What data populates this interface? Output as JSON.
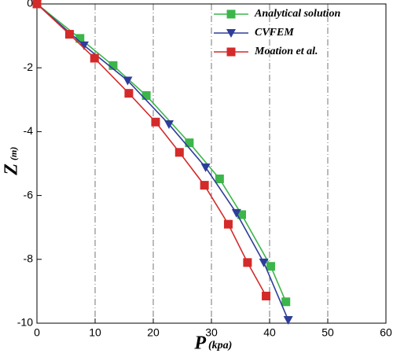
{
  "chart_data": {
    "type": "line",
    "x_label": "P",
    "x_unit": "(kpa)",
    "y_label": "Z",
    "y_unit": "(m)",
    "xlim": [
      0,
      60
    ],
    "ylim": [
      -10,
      0
    ],
    "xticks": [
      0,
      10,
      20,
      30,
      40,
      50,
      60
    ],
    "yticks": [
      0,
      -2,
      -4,
      -6,
      -8,
      -10
    ],
    "grid": true,
    "legend": "upper right",
    "series": [
      {
        "name": "Analytical solution",
        "color": "#3cb54a",
        "marker": "square",
        "x": [
          0,
          7.4,
          13.1,
          18.8,
          26.2,
          31.4,
          35.2,
          40.2,
          42.8
        ],
        "values": [
          0,
          -1.08,
          -1.93,
          -2.87,
          -4.35,
          -5.48,
          -6.6,
          -8.22,
          -9.33
        ]
      },
      {
        "name": "CVFEM",
        "color": "#2e3d9a",
        "marker": "triangle-down",
        "x": [
          0,
          8.1,
          15.6,
          22.7,
          29,
          34.3,
          39,
          43.2
        ],
        "values": [
          0,
          -1.3,
          -2.4,
          -3.77,
          -5.12,
          -6.55,
          -8.1,
          -9.9
        ]
      },
      {
        "name": "Moation et al.",
        "color": "#d42a2a",
        "marker": "square",
        "x": [
          0,
          5.6,
          9.9,
          15.8,
          20.4,
          24.5,
          28.8,
          32.9,
          36.2,
          39.4
        ],
        "values": [
          0,
          -0.95,
          -1.7,
          -2.8,
          -3.7,
          -4.65,
          -5.68,
          -6.9,
          -8.1,
          -9.15
        ]
      }
    ]
  }
}
